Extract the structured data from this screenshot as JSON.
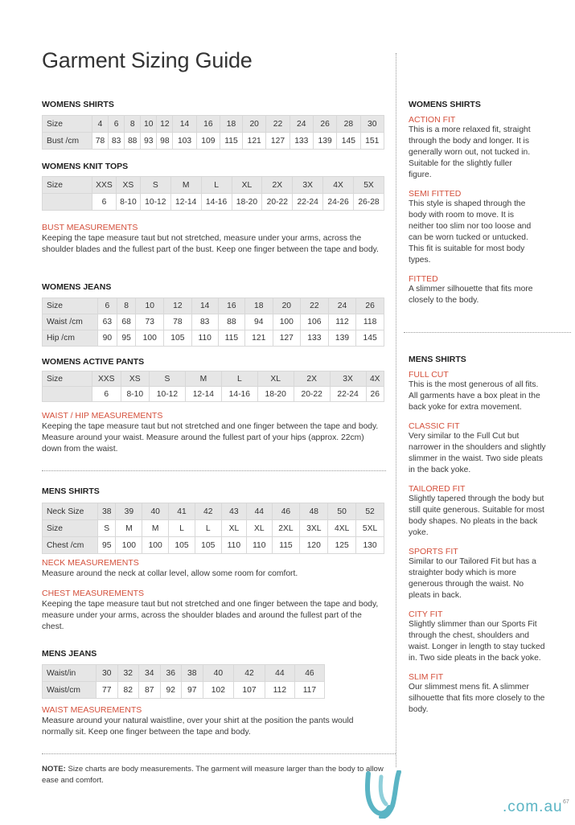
{
  "title": "Garment Sizing Guide",
  "left": {
    "womens_shirts": {
      "heading": "WOMENS SHIRTS",
      "rows": [
        [
          "Size",
          "4",
          "6",
          "8",
          "10",
          "12",
          "14",
          "16",
          "18",
          "20",
          "22",
          "24",
          "26",
          "28",
          "30"
        ],
        [
          "Bust /cm",
          "78",
          "83",
          "88",
          "93",
          "98",
          "103",
          "109",
          "115",
          "121",
          "127",
          "133",
          "139",
          "145",
          "151"
        ]
      ]
    },
    "womens_knit_tops": {
      "heading": "WOMENS KNIT TOPS",
      "rows": [
        [
          "Size",
          "XXS",
          "XS",
          "S",
          "M",
          "L",
          "XL",
          "2X",
          "3X",
          "4X",
          "5X"
        ],
        [
          "",
          "6",
          "8-10",
          "10-12",
          "12-14",
          "14-16",
          "18-20",
          "20-22",
          "22-24",
          "24-26",
          "26-28"
        ]
      ]
    },
    "bust": {
      "heading": "BUST MEASUREMENTS",
      "text": "Keeping the tape measure taut but not stretched, measure under your arms, across the shoulder blades and the fullest part of the bust. Keep one finger between the tape and body."
    },
    "womens_jeans": {
      "heading": "WOMENS JEANS",
      "rows": [
        [
          "Size",
          "6",
          "8",
          "10",
          "12",
          "14",
          "16",
          "18",
          "20",
          "22",
          "24",
          "26"
        ],
        [
          "Waist /cm",
          "63",
          "68",
          "73",
          "78",
          "83",
          "88",
          "94",
          "100",
          "106",
          "112",
          "118"
        ],
        [
          "Hip /cm",
          "90",
          "95",
          "100",
          "105",
          "110",
          "115",
          "121",
          "127",
          "133",
          "139",
          "145"
        ]
      ]
    },
    "womens_active_pants": {
      "heading": "WOMENS ACTIVE PANTS",
      "rows": [
        [
          "Size",
          "XXS",
          "XS",
          "S",
          "M",
          "L",
          "XL",
          "2X",
          "3X",
          "4X"
        ],
        [
          "",
          "6",
          "8-10",
          "10-12",
          "12-14",
          "14-16",
          "18-20",
          "20-22",
          "22-24",
          "26"
        ]
      ]
    },
    "waist_hip": {
      "heading": "WAIST / HIP MEASUREMENTS",
      "text": "Keeping the tape measure taut but not stretched and one finger between the tape and body. Measure around your waist. Measure around the fullest part of your hips (approx. 22cm) down from the waist."
    },
    "mens_shirts": {
      "heading": "MENS SHIRTS",
      "rows": [
        [
          "Neck Size",
          "38",
          "39",
          "40",
          "41",
          "42",
          "43",
          "44",
          "46",
          "48",
          "50",
          "52"
        ],
        [
          "Size",
          "S",
          "M",
          "M",
          "L",
          "L",
          "XL",
          "XL",
          "2XL",
          "3XL",
          "4XL",
          "5XL"
        ],
        [
          "Chest /cm",
          "95",
          "100",
          "100",
          "105",
          "105",
          "110",
          "110",
          "115",
          "120",
          "125",
          "130"
        ]
      ]
    },
    "neck": {
      "heading": "NECK MEASUREMENTS",
      "text": "Measure around the neck at collar level, allow some room for comfort."
    },
    "chest": {
      "heading": "CHEST MEASUREMENTS",
      "text": "Keeping the tape measure taut but not stretched and one finger between the tape and body, measure under your arms, across the shoulder blades and around the fullest part of the chest."
    },
    "mens_jeans": {
      "heading": "MENS JEANS",
      "rows": [
        [
          "Waist/in",
          "30",
          "32",
          "34",
          "36",
          "38",
          "40",
          "42",
          "44",
          "46"
        ],
        [
          "Waist/cm",
          "77",
          "82",
          "87",
          "92",
          "97",
          "102",
          "107",
          "112",
          "117"
        ]
      ]
    },
    "waist": {
      "heading": "WAIST MEASUREMENTS",
      "text": "Measure around your natural waistline, over your shirt at the position the pants would normally sit. Keep one finger between the tape and body."
    },
    "note": {
      "label": "NOTE:",
      "text": " Size charts are body measurements. The garment will measure larger than the body to allow ease and comfort."
    }
  },
  "right": {
    "womens_heading": "WOMENS SHIRTS",
    "womens_fits": [
      {
        "name": "ACTION FIT",
        "text": "This is a more relaxed fit, straight through the body and longer. It is generally worn out, not tucked in. Suitable for the slightly fuller figure."
      },
      {
        "name": "SEMI FITTED",
        "text": "This style is shaped through the body with room to move. It is neither too slim nor too loose and can be worn tucked or untucked. This fit is suitable for most body types."
      },
      {
        "name": "FITTED",
        "text": "A slimmer silhouette that fits more closely to the body."
      }
    ],
    "mens_heading": "MENS SHIRTS",
    "mens_fits": [
      {
        "name": "FULL CUT",
        "text": "This is the most generous of all fits. All garments have a box pleat in the back yoke for extra movement."
      },
      {
        "name": "CLASSIC FIT",
        "text": "Very similar to the Full Cut but narrower in the shoulders and slightly slimmer in the waist. Two side pleats in the back yoke."
      },
      {
        "name": "TAILORED FIT",
        "text": "Slightly tapered through the body but still quite generous. Suitable for most body shapes. No pleats in the back yoke."
      },
      {
        "name": "SPORTS FIT",
        "text": "Similar to our Tailored Fit but has a straighter body which is more generous through the waist. No pleats in back."
      },
      {
        "name": "CITY FIT",
        "text": "Slightly slimmer than our Sports Fit through the chest, shoulders and waist. Longer in length to stay tucked in. Two side pleats in the back yoke."
      },
      {
        "name": "SLIM FIT",
        "text": "Our slimmest mens fit. A slimmer silhouette that fits more closely to the body."
      }
    ]
  },
  "footer": {
    "domain": ".com.au",
    "page_number": "67",
    "brand_color": "#5ab4c4"
  },
  "accent_color": "#d4503c"
}
